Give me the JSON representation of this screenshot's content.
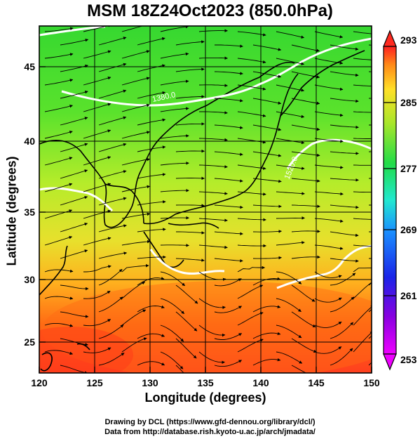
{
  "title": "MSM 18Z24Oct2023 (850.0hPa)",
  "x_axis": {
    "label": "Longitude (degrees)",
    "min": 120,
    "max": 150,
    "ticks": [
      "120",
      "125",
      "130",
      "135",
      "140",
      "145",
      "150"
    ]
  },
  "y_axis": {
    "label": "Latitude  (degrees)",
    "min": 22.5,
    "max": 47.6,
    "ticks": [
      "25",
      "30",
      "35",
      "40",
      "45"
    ]
  },
  "colorbar": {
    "min": 253,
    "max": 293,
    "ticks": [
      "253",
      "261",
      "269",
      "277",
      "285",
      "293"
    ]
  },
  "contour_labels": [
    "1380.0",
    "1520.0"
  ],
  "credits": {
    "line1": "Drawing by DCL (https://www.gfd-dennou.org/library/dcl/)",
    "line2": "Data from http://database.rish.kyoto-u.ac.jp/arch/jmadata/"
  },
  "colors": {
    "warm": "#ff4a1e",
    "mid": "#f5e032",
    "cool": "#3fdc2a"
  }
}
